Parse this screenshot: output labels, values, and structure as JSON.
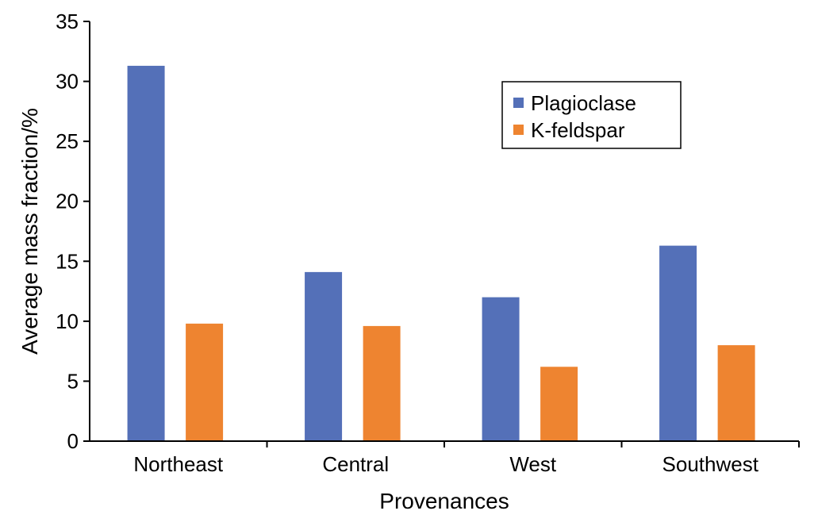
{
  "chart_data": {
    "type": "bar",
    "xlabel": "Provenances",
    "ylabel": "Average mass fraction/%",
    "categories": [
      "Northeast",
      "Central",
      "West",
      "Southwest"
    ],
    "series": [
      {
        "name": "Plagioclase",
        "color": "#5470b8",
        "values": [
          31.3,
          14.1,
          12.0,
          16.3
        ]
      },
      {
        "name": "K-feldspar",
        "color": "#ee8430",
        "values": [
          9.8,
          9.6,
          6.2,
          8.0
        ]
      }
    ],
    "ylim": [
      0,
      35
    ],
    "yticks": [
      0,
      5,
      10,
      15,
      20,
      25,
      30,
      35
    ],
    "grid": false,
    "legend_position": "top-right"
  }
}
